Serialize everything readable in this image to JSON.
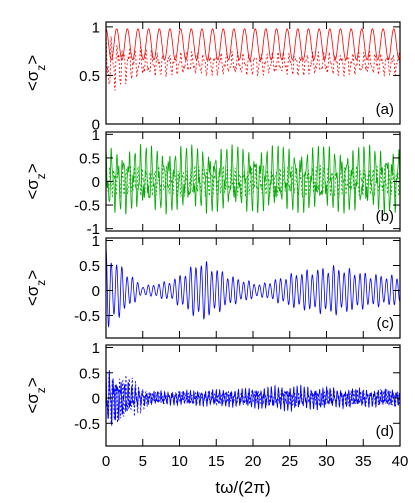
{
  "chart_data": {
    "type": "line",
    "xlabel": "tω/(2π)",
    "x_ticks": [
      "0",
      "5",
      "10",
      "15",
      "20",
      "25",
      "30",
      "35",
      "40"
    ],
    "xlim": [
      0,
      40
    ],
    "panels": [
      {
        "tag": "(a)",
        "ylabel": "<σz>",
        "ylim": [
          0,
          1.05
        ],
        "y_ticks": [
          {
            "v": 0,
            "l": "0"
          },
          {
            "v": 0.5,
            "l": "0.5"
          },
          {
            "v": 1,
            "l": "1"
          }
        ],
        "series": [
          {
            "style": "solid",
            "color": "#ff0000",
            "kind": "cosine",
            "base": 0.82,
            "amp": 0.16,
            "period": 1.45,
            "env": [
              [
                0,
                1
              ],
              [
                40,
                1
              ]
            ]
          },
          {
            "style": "dashed",
            "color": "#ff0000",
            "kind": "noisy",
            "base": 0.62,
            "amp": 0.13,
            "period": 0.78,
            "env": [
              [
                0,
                2.8
              ],
              [
                3,
                1.5
              ],
              [
                8,
                1
              ],
              [
                40,
                1
              ]
            ]
          }
        ]
      },
      {
        "tag": "(b)",
        "ylabel": "<σz>",
        "ylim": [
          -1.05,
          1.05
        ],
        "y_ticks": [
          {
            "v": -1,
            "l": "-1"
          },
          {
            "v": -0.5,
            "l": "-0.5"
          },
          {
            "v": 0,
            "l": "0"
          },
          {
            "v": 0.5,
            "l": "0.5"
          },
          {
            "v": 1,
            "l": "1"
          }
        ],
        "series": [
          {
            "style": "solid",
            "color": "#00aa00",
            "kind": "noisy",
            "base": 0.05,
            "amp": 0.85,
            "period": 0.78,
            "env": [
              [
                0,
                0.9
              ],
              [
                40,
                0.9
              ]
            ]
          },
          {
            "style": "dashed",
            "color": "#00aa00",
            "kind": "noisy",
            "base": 0.0,
            "amp": 0.35,
            "period": 0.55,
            "env": [
              [
                0,
                1
              ],
              [
                40,
                1
              ]
            ]
          }
        ]
      },
      {
        "tag": "(c)",
        "ylabel": "<σz>",
        "ylim": [
          -0.95,
          1.05
        ],
        "y_ticks": [
          {
            "v": -0.5,
            "l": "-0.5"
          },
          {
            "v": 0,
            "l": "0"
          },
          {
            "v": 0.5,
            "l": "0.5"
          },
          {
            "v": 1,
            "l": "1"
          }
        ],
        "series": [
          {
            "style": "solid",
            "color": "#0000ff",
            "kind": "revival",
            "base": 0.0,
            "amp": 0.85,
            "period": 0.72,
            "env": [
              [
                0,
                1.0
              ],
              [
                2,
                0.6
              ],
              [
                5,
                0.1
              ],
              [
                9,
                0.25
              ],
              [
                13,
                0.75
              ],
              [
                17,
                0.35
              ],
              [
                21,
                0.15
              ],
              [
                26,
                0.45
              ],
              [
                31,
                0.6
              ],
              [
                36,
                0.4
              ],
              [
                40,
                0.35
              ]
            ]
          }
        ]
      },
      {
        "tag": "(d)",
        "ylabel": "<σz>",
        "ylim": [
          -0.95,
          1.05
        ],
        "y_ticks": [
          {
            "v": -0.5,
            "l": "-0.5"
          },
          {
            "v": 0,
            "l": "0"
          },
          {
            "v": 0.5,
            "l": "0.5"
          },
          {
            "v": 1,
            "l": "1"
          }
        ],
        "series": [
          {
            "style": "solid",
            "color": "#0000ff",
            "kind": "noisy",
            "base": 0.0,
            "amp": 0.7,
            "period": 0.5,
            "env": [
              [
                0,
                1.0
              ],
              [
                2,
                0.6
              ],
              [
                5,
                0.2
              ],
              [
                10,
                0.22
              ],
              [
                18,
                0.28
              ],
              [
                25,
                0.4
              ],
              [
                32,
                0.3
              ],
              [
                40,
                0.25
              ]
            ]
          },
          {
            "style": "dashed",
            "color": "#0000ff",
            "kind": "noisy",
            "base": 0.0,
            "amp": 0.6,
            "period": 0.45,
            "env": [
              [
                0,
                0.95
              ],
              [
                4,
                0.7
              ],
              [
                6,
                0.2
              ],
              [
                40,
                0.3
              ]
            ]
          }
        ]
      }
    ]
  }
}
